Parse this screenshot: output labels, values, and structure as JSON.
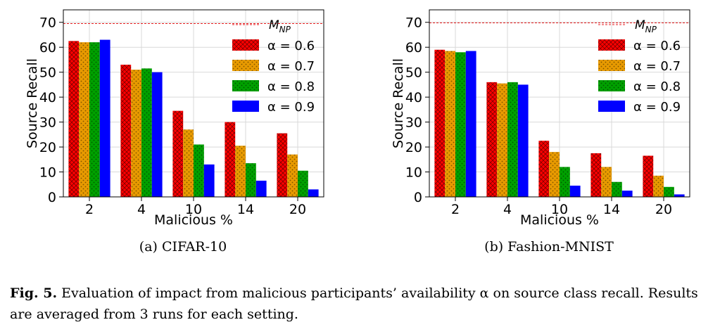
{
  "chart_data": [
    {
      "type": "bar",
      "categories": [
        "2",
        "4",
        "10",
        "14",
        "20"
      ],
      "xlabel": "Malicious %",
      "ylabel": "Source Recall",
      "ylim": [
        0,
        75
      ],
      "yticks": [
        0,
        10,
        20,
        30,
        40,
        50,
        60,
        70
      ],
      "grid": true,
      "legend": "top-right",
      "reference_line": {
        "name": "M_NP",
        "value": 69.5,
        "color": "#e41a1c",
        "style": "dashed"
      },
      "series": [
        {
          "name": "α = 0.6",
          "color": "#ff0000",
          "hatch": "crosshatch",
          "values": [
            62.5,
            53,
            34.5,
            30,
            25.5
          ]
        },
        {
          "name": "α = 0.7",
          "color": "#e89a00",
          "hatch": "dots",
          "values": [
            62,
            51,
            27,
            20.5,
            17
          ]
        },
        {
          "name": "α = 0.8",
          "color": "#00a000",
          "hatch": "dots",
          "values": [
            62,
            51.5,
            21,
            13.5,
            10.5
          ]
        },
        {
          "name": "α = 0.9",
          "color": "#0000ff",
          "hatch": "none",
          "values": [
            63,
            50,
            13,
            6.5,
            3
          ]
        }
      ]
    },
    {
      "type": "bar",
      "categories": [
        "2",
        "4",
        "10",
        "14",
        "20"
      ],
      "xlabel": "Malicious %",
      "ylabel": "Source Recall",
      "ylim": [
        0,
        75
      ],
      "yticks": [
        0,
        10,
        20,
        30,
        40,
        50,
        60,
        70
      ],
      "grid": true,
      "legend": "top-right",
      "reference_line": {
        "name": "M_NP",
        "value": 69.8,
        "color": "#e41a1c",
        "style": "dashed"
      },
      "series": [
        {
          "name": "α = 0.6",
          "color": "#ff0000",
          "hatch": "crosshatch",
          "values": [
            59,
            46,
            22.5,
            17.5,
            16.5
          ]
        },
        {
          "name": "α = 0.7",
          "color": "#e89a00",
          "hatch": "dots",
          "values": [
            58.5,
            45.5,
            18,
            12,
            8.5
          ]
        },
        {
          "name": "α = 0.8",
          "color": "#00a000",
          "hatch": "dots",
          "values": [
            58,
            46,
            12,
            6,
            4
          ]
        },
        {
          "name": "α = 0.9",
          "color": "#0000ff",
          "hatch": "none",
          "values": [
            58.5,
            45,
            4.5,
            2.5,
            1
          ]
        }
      ]
    }
  ],
  "subcaptions": [
    "(a) CIFAR-10",
    "(b) Fashion-MNIST"
  ],
  "caption": {
    "label": "Fig. 5.",
    "text": "Evaluation of impact from malicious participants’ availability α on source class recall. Results are averaged from 3 runs for each setting."
  }
}
